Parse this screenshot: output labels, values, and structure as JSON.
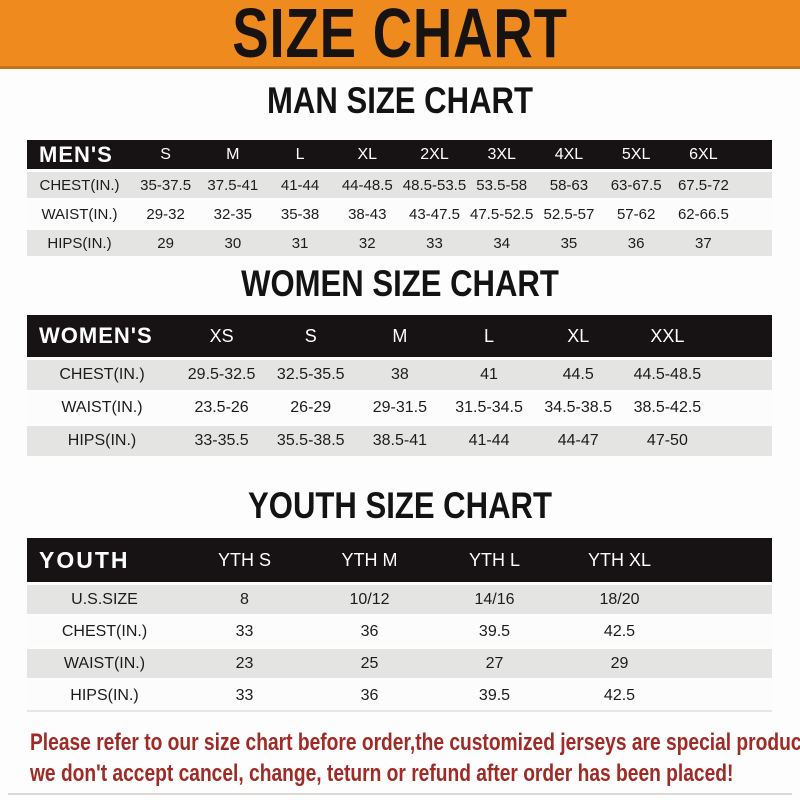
{
  "page": {
    "title": "SIZE CHART",
    "footer_line1": "Please refer to our size chart before order,the customized jerseys are special products,",
    "footer_line2": "we don't accept cancel, change, teturn or refund after order has been placed!"
  },
  "colors": {
    "accent_orange": "#ee8a1e",
    "header_black": "#171314",
    "row_gray": "#e4e4e3",
    "row_white": "#fcfcfc",
    "footer_red": "#9e2b26"
  },
  "sections": [
    {
      "id": "men",
      "heading": "MAN SIZE CHART",
      "table": {
        "corner_label": "MEN'S",
        "columns": [
          "S",
          "M",
          "L",
          "XL",
          "2XL",
          "3XL",
          "4XL",
          "5XL",
          "6XL"
        ],
        "rows": [
          {
            "label": "CHEST(IN.)",
            "values": [
              "35-37.5",
              "37.5-41",
              "41-44",
              "44-48.5",
              "48.5-53.5",
              "53.5-58",
              "58-63",
              "63-67.5",
              "67.5-72"
            ]
          },
          {
            "label": "WAIST(IN.)",
            "values": [
              "29-32",
              "32-35",
              "35-38",
              "38-43",
              "43-47.5",
              "47.5-52.5",
              "52.5-57",
              "57-62",
              "62-66.5"
            ]
          },
          {
            "label": "HIPS(IN.)",
            "values": [
              "29",
              "30",
              "31",
              "32",
              "33",
              "34",
              "35",
              "36",
              "37"
            ]
          }
        ]
      }
    },
    {
      "id": "women",
      "heading": "WOMEN SIZE CHART",
      "table": {
        "corner_label": "WOMEN'S",
        "columns": [
          "XS",
          "S",
          "M",
          "L",
          "XL",
          "XXL"
        ],
        "rows": [
          {
            "label": "CHEST(IN.)",
            "values": [
              "29.5-32.5",
              "32.5-35.5",
              "38",
              "41",
              "44.5",
              "44.5-48.5"
            ]
          },
          {
            "label": "WAIST(IN.)",
            "values": [
              "23.5-26",
              "26-29",
              "29-31.5",
              "31.5-34.5",
              "34.5-38.5",
              "38.5-42.5"
            ]
          },
          {
            "label": "HIPS(IN.)",
            "values": [
              "33-35.5",
              "35.5-38.5",
              "38.5-41",
              "41-44",
              "44-47",
              "47-50"
            ]
          }
        ]
      }
    },
    {
      "id": "youth",
      "heading": "YOUTH SIZE CHART",
      "table": {
        "corner_label": "YOUTH",
        "columns": [
          "YTH S",
          "YTH M",
          "YTH L",
          "YTH XL"
        ],
        "rows": [
          {
            "label": "U.S.SIZE",
            "values": [
              "8",
              "10/12",
              "14/16",
              "18/20"
            ]
          },
          {
            "label": "CHEST(IN.)",
            "values": [
              "33",
              "36",
              "39.5",
              "42.5"
            ]
          },
          {
            "label": "WAIST(IN.)",
            "values": [
              "23",
              "25",
              "27",
              "29"
            ]
          },
          {
            "label": "HIPS(IN.)",
            "values": [
              "33",
              "36",
              "39.5",
              "42.5"
            ]
          }
        ]
      }
    }
  ]
}
